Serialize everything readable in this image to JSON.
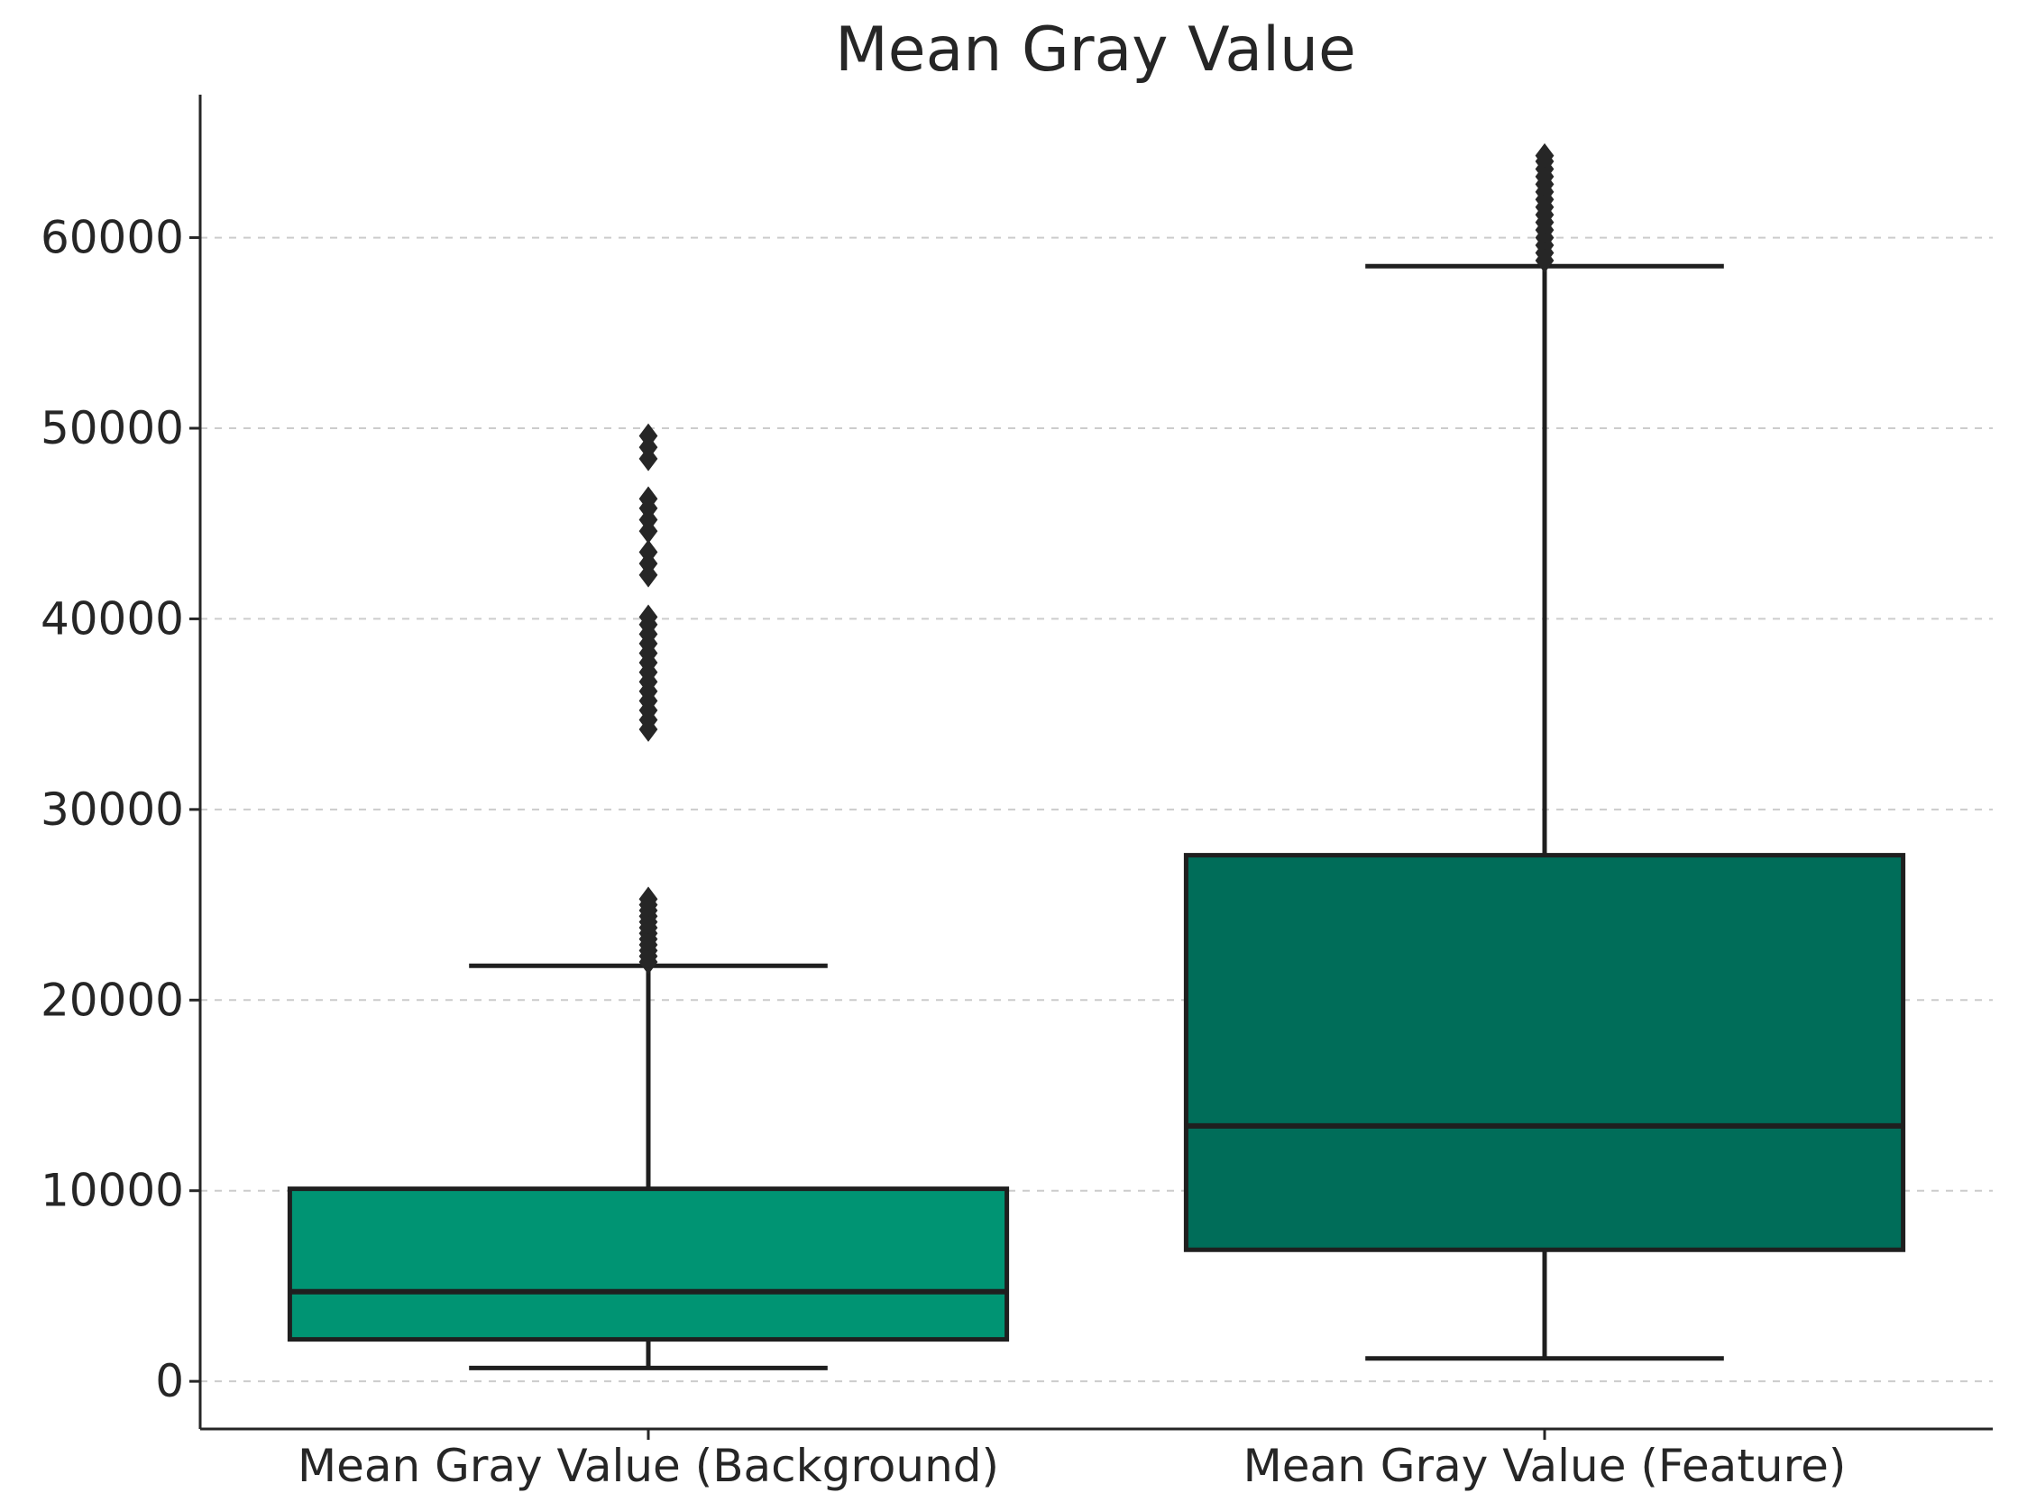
{
  "chart_data": {
    "type": "box",
    "title": "Mean Gray Value",
    "xlabel": "",
    "ylabel": "",
    "ylim": [
      -2500,
      67500
    ],
    "yticks": [
      0,
      10000,
      20000,
      30000,
      40000,
      50000,
      60000
    ],
    "grid": "y, dashed",
    "categories": [
      "Mean Gray Value (Background)",
      "Mean Gray Value (Feature)"
    ],
    "boxes": [
      {
        "category": "Mean Gray Value (Background)",
        "whisker_low": 700,
        "q1": 2200,
        "median": 4700,
        "q3": 10100,
        "whisker_high": 21800,
        "color": "#009473",
        "outliers": [
          22000,
          22300,
          22600,
          22900,
          23200,
          23500,
          23800,
          24100,
          24400,
          24700,
          25000,
          25300,
          34200,
          34700,
          35200,
          35700,
          36200,
          36700,
          37200,
          37700,
          38200,
          38700,
          39200,
          39700,
          40100,
          42300,
          42900,
          43500,
          44600,
          45200,
          45800,
          46300,
          48400,
          49000,
          49600
        ]
      },
      {
        "category": "Mean Gray Value (Feature)",
        "whisker_low": 1200,
        "q1": 6900,
        "median": 13400,
        "q3": 27600,
        "whisker_high": 58500,
        "color": "#006d59",
        "outliers": [
          58800,
          59200,
          59600,
          60000,
          60400,
          60800,
          61200,
          61600,
          62000,
          62400,
          62800,
          63200,
          63600,
          64000,
          64300
        ]
      }
    ]
  }
}
